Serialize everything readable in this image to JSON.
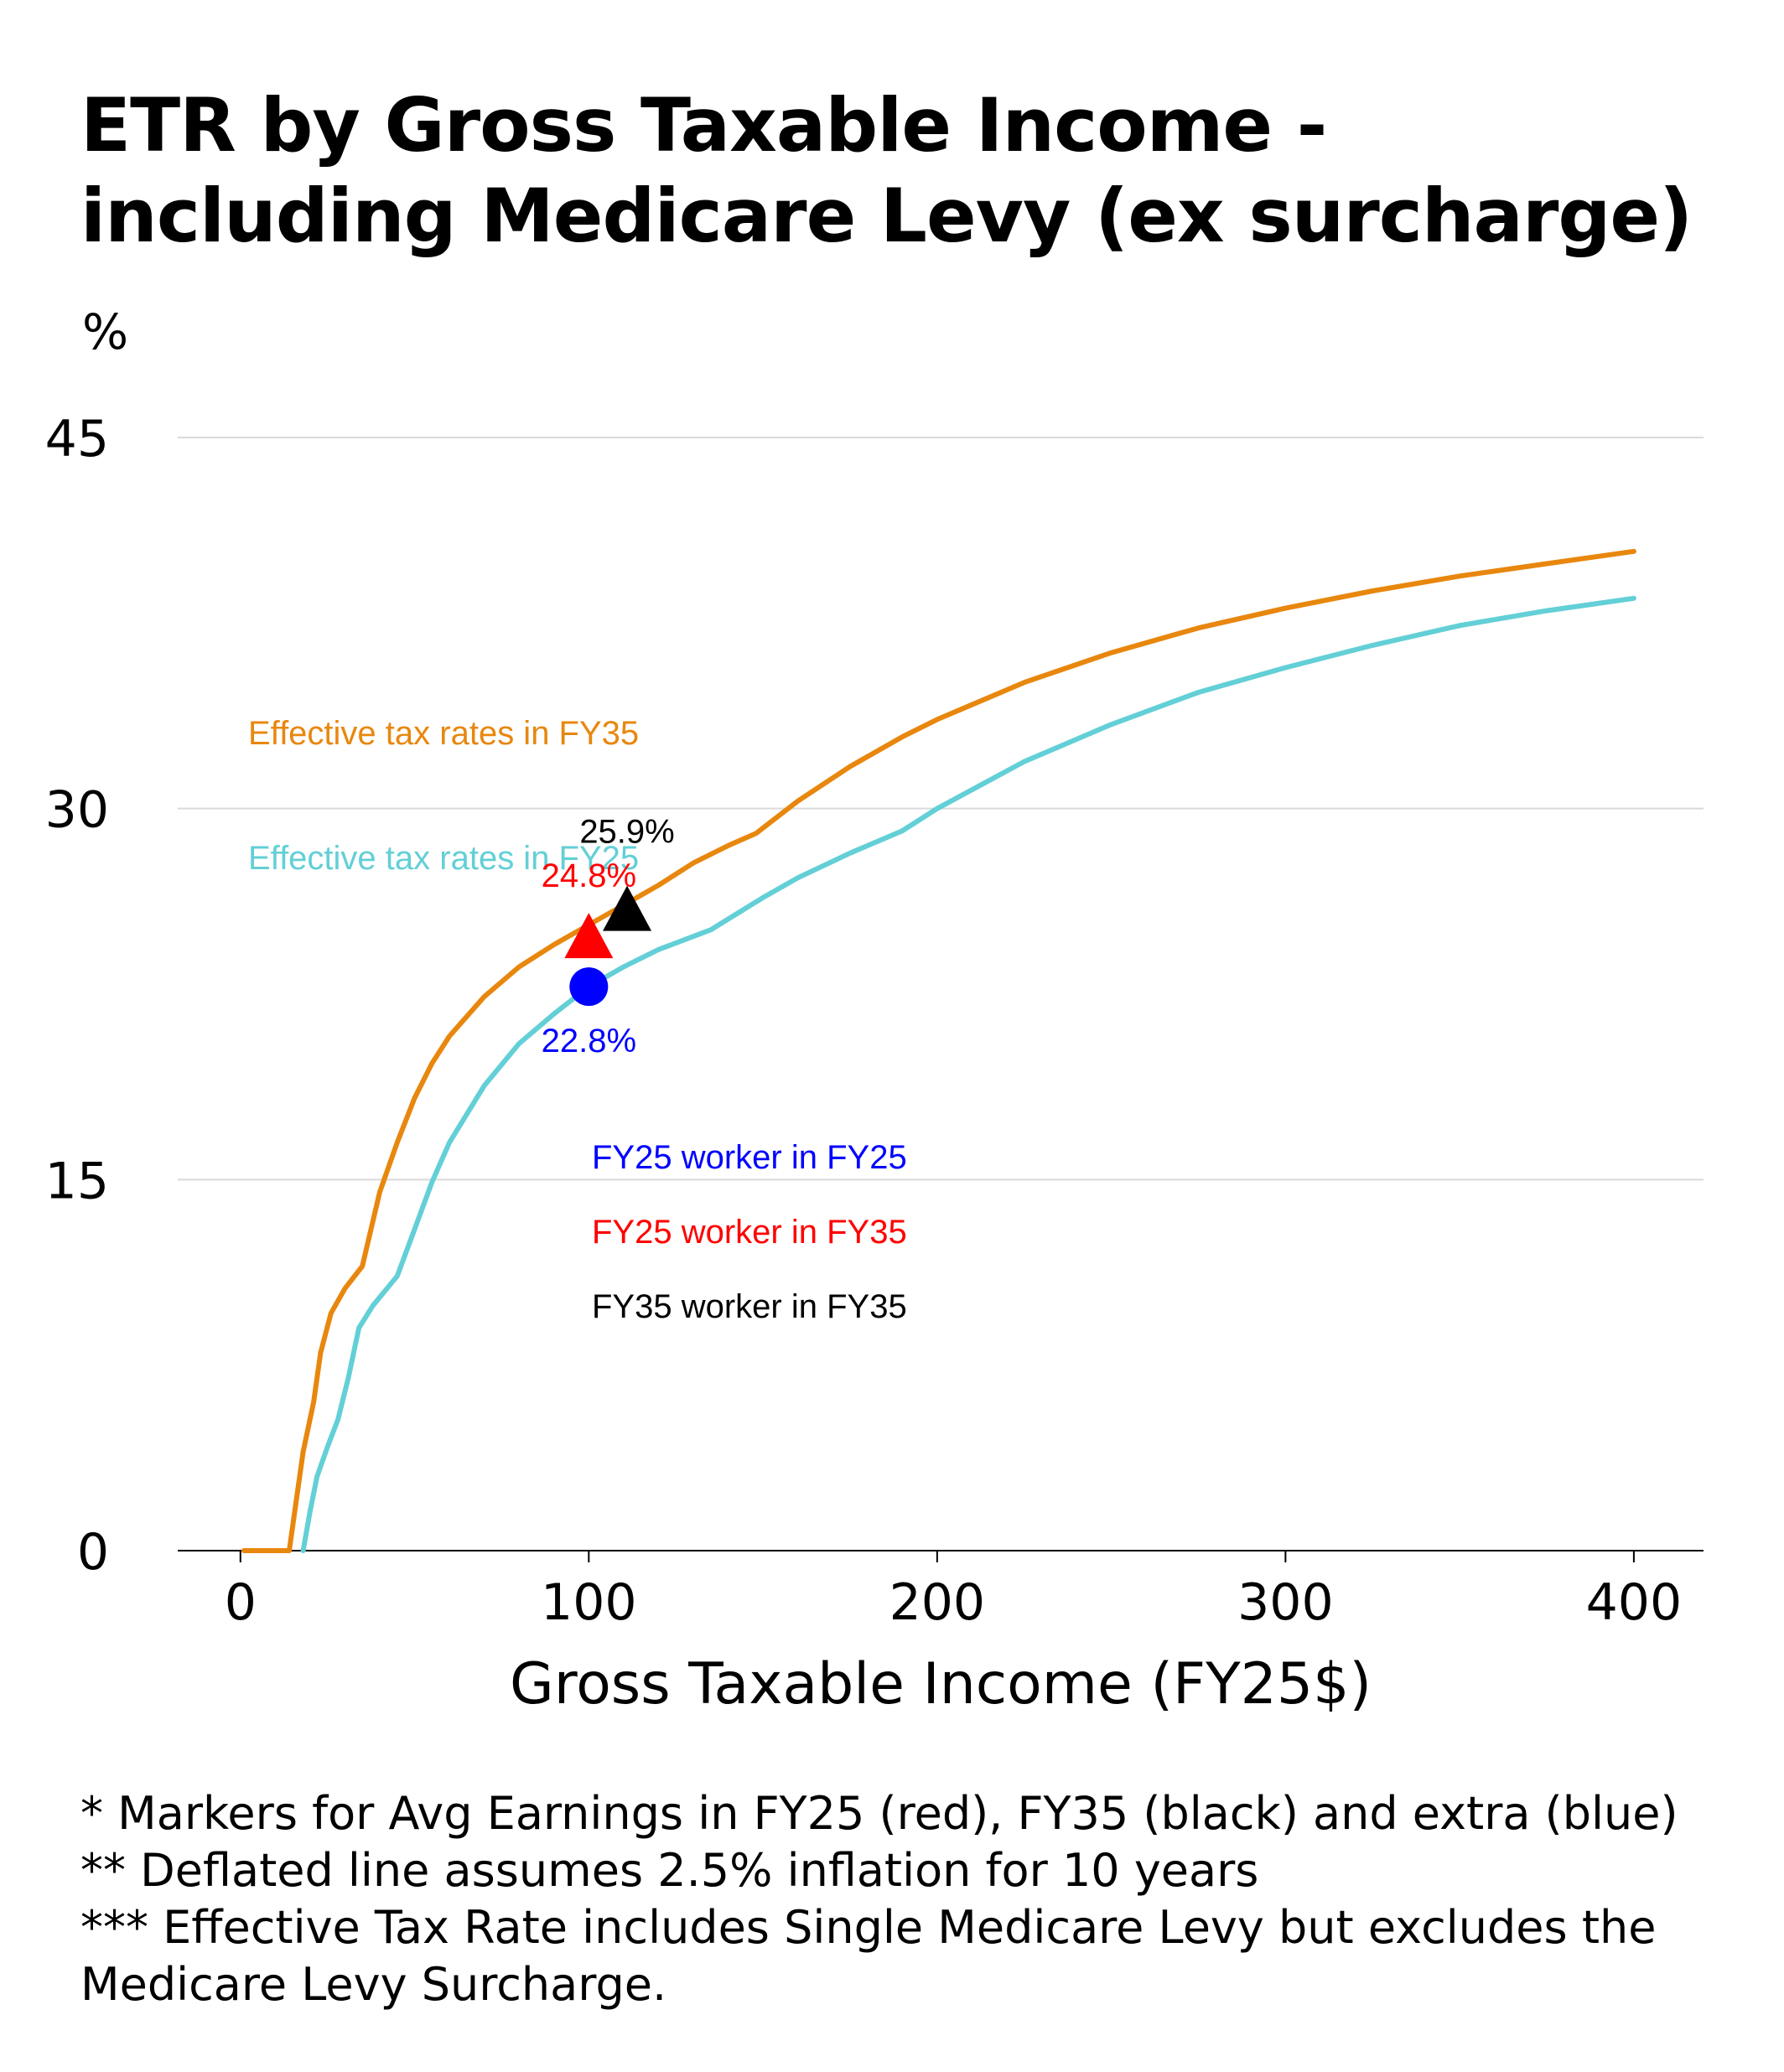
{
  "title": "ETR by Gross Taxable Income - including Medicare Levy (ex surcharge)",
  "y_unit": "%",
  "colors": {
    "fy35_line": "#E8870E",
    "fy25_line": "#63CFD6",
    "blue_marker": "#0000FF",
    "red_marker": "#FF0000",
    "black_marker": "#000000",
    "grid": "#D9D9D9"
  },
  "chart_data": {
    "type": "line",
    "xlabel": "Gross Taxable Income (FY25$)",
    "ylabel": "%",
    "xlim": [
      -18,
      420
    ],
    "ylim": [
      0,
      45
    ],
    "x_ticks": [
      0,
      100,
      200,
      300,
      400
    ],
    "y_ticks": [
      0,
      15,
      30,
      45
    ],
    "grid": "horizontal",
    "series": [
      {
        "name": "Effective tax rates in FY35",
        "color": "#E8870E",
        "points": [
          [
            1,
            0
          ],
          [
            14,
            0
          ],
          [
            16,
            2
          ],
          [
            18,
            4
          ],
          [
            21,
            6
          ],
          [
            23,
            8
          ],
          [
            26,
            9.6
          ],
          [
            30,
            10.6
          ],
          [
            35,
            11.5
          ],
          [
            40,
            14.5
          ],
          [
            45,
            16.5
          ],
          [
            50,
            18.3
          ],
          [
            55,
            19.7
          ],
          [
            60,
            20.8
          ],
          [
            70,
            22.4
          ],
          [
            80,
            23.6
          ],
          [
            90,
            24.5
          ],
          [
            100,
            25.3
          ],
          [
            110,
            26.1
          ],
          [
            120,
            26.9
          ],
          [
            130,
            27.8
          ],
          [
            140,
            28.5
          ],
          [
            148,
            29.0
          ],
          [
            160,
            30.3
          ],
          [
            175,
            31.7
          ],
          [
            190,
            32.9
          ],
          [
            200,
            33.6
          ],
          [
            225,
            35.1
          ],
          [
            250,
            36.3
          ],
          [
            275,
            37.3
          ],
          [
            300,
            38.1
          ],
          [
            325,
            38.8
          ],
          [
            350,
            39.4
          ],
          [
            375,
            39.9
          ],
          [
            400,
            40.4
          ]
        ]
      },
      {
        "name": "Effective tax rates in FY25",
        "color": "#63CFD6",
        "points": [
          [
            18,
            0
          ],
          [
            20,
            1.6
          ],
          [
            22,
            3
          ],
          [
            25,
            4.2
          ],
          [
            28,
            5.3
          ],
          [
            31,
            7
          ],
          [
            34,
            9
          ],
          [
            38,
            9.9
          ],
          [
            45,
            11.1
          ],
          [
            50,
            13
          ],
          [
            55,
            14.9
          ],
          [
            60,
            16.5
          ],
          [
            70,
            18.8
          ],
          [
            80,
            20.5
          ],
          [
            90,
            21.7
          ],
          [
            100,
            22.8
          ],
          [
            110,
            23.6
          ],
          [
            120,
            24.3
          ],
          [
            135,
            25.1
          ],
          [
            150,
            26.4
          ],
          [
            160,
            27.2
          ],
          [
            175,
            28.2
          ],
          [
            190,
            29.1
          ],
          [
            200,
            30.0
          ],
          [
            225,
            31.9
          ],
          [
            250,
            33.4
          ],
          [
            275,
            34.7
          ],
          [
            300,
            35.7
          ],
          [
            325,
            36.6
          ],
          [
            350,
            37.4
          ],
          [
            375,
            38.0
          ],
          [
            400,
            38.5
          ]
        ]
      }
    ],
    "markers": [
      {
        "label": "FY25 worker in FY25",
        "shape": "circle",
        "x": 100,
        "y": 22.8,
        "value_label": "22.8%",
        "color": "#0000FF"
      },
      {
        "label": "FY25 worker in FY35",
        "shape": "triangle",
        "x": 100,
        "y": 24.8,
        "value_label": "24.8%",
        "color": "#FF0000"
      },
      {
        "label": "FY35 worker in FY35",
        "shape": "triangle",
        "x": 111,
        "y": 25.9,
        "value_label": "25.9%",
        "color": "#000000"
      }
    ]
  },
  "footnotes": [
    "* Markers for Avg Earnings in FY25 (red), FY35 (black) and extra (blue)",
    "** Deflated line assumes 2.5% inflation for 10 years",
    "*** Effective Tax Rate includes Single Medicare Levy but excludes the",
    "Medicare Levy Surcharge."
  ]
}
